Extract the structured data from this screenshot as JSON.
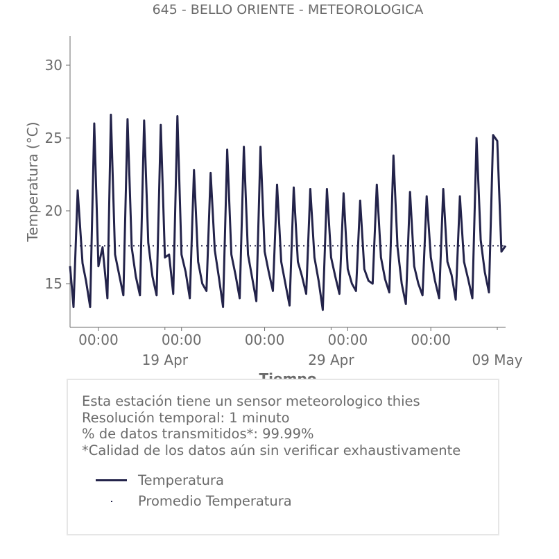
{
  "colors": {
    "series": "#23234a",
    "axis": "#6b6b6b",
    "box_border": "#e6e6e6"
  },
  "info": {
    "lines": [
      "Esta estación tiene un sensor meteorologico thies",
      "Resolución temporal: 1 minuto",
      "% de datos transmitidos*: 99.99%",
      "*Calidad de los datos aún sin verificar exhaustivamente"
    ]
  },
  "chart_data": {
    "type": "line",
    "title": "645 - BELLO ORIENTE - METEOROLOGICA",
    "xlabel": "Tiempo",
    "ylabel": "Temperatura (°C)",
    "ylim": [
      12.0,
      32.0
    ],
    "xlim": [
      "2024-04-13 07:00",
      "2024-05-09 12:00"
    ],
    "y_ticks": [
      15,
      20,
      25,
      30
    ],
    "x_ticks": [
      {
        "x": "2024-04-15 00:00",
        "label": "00:00",
        "sublabel": ""
      },
      {
        "x": "2024-04-20 00:00",
        "label": "00:00",
        "sublabel": ""
      },
      {
        "x": "2024-04-25 00:00",
        "label": "00:00",
        "sublabel": ""
      },
      {
        "x": "2024-04-30 00:00",
        "label": "00:00",
        "sublabel": ""
      },
      {
        "x": "2024-05-05 00:00",
        "label": "00:00",
        "sublabel": ""
      }
    ],
    "x_date_labels": [
      {
        "x": "2024-04-19 00:00",
        "label": "19 Apr"
      },
      {
        "x": "2024-04-29 00:00",
        "label": "29 Apr"
      },
      {
        "x": "2024-05-09 00:00",
        "label": "09 May"
      }
    ],
    "grid": false,
    "legend_placement": "below chart",
    "series": [
      {
        "name": "Temperatura",
        "style": "solid",
        "x": [
          "2024-04-13 07:00",
          "2024-04-13 12:00",
          "2024-04-13 18:00",
          "2024-04-14 01:00",
          "2024-04-14 06:00",
          "2024-04-14 12:00",
          "2024-04-14 18:00",
          "2024-04-15 00:00",
          "2024-04-15 06:00",
          "2024-04-15 13:00",
          "2024-04-15 18:00",
          "2024-04-16 00:00",
          "2024-04-16 06:00",
          "2024-04-16 12:00",
          "2024-04-16 18:00",
          "2024-04-17 00:00",
          "2024-04-17 06:00",
          "2024-04-17 12:00",
          "2024-04-17 18:00",
          "2024-04-18 00:00",
          "2024-04-18 06:00",
          "2024-04-18 12:00",
          "2024-04-18 18:00",
          "2024-04-19 00:00",
          "2024-04-19 06:00",
          "2024-04-19 12:00",
          "2024-04-19 18:00",
          "2024-04-20 00:00",
          "2024-04-20 06:00",
          "2024-04-20 12:00",
          "2024-04-20 18:00",
          "2024-04-21 00:00",
          "2024-04-21 06:00",
          "2024-04-21 12:00",
          "2024-04-21 18:00",
          "2024-04-22 00:00",
          "2024-04-22 06:00",
          "2024-04-22 12:00",
          "2024-04-22 18:00",
          "2024-04-23 00:00",
          "2024-04-23 06:00",
          "2024-04-23 12:00",
          "2024-04-23 18:00",
          "2024-04-24 00:00",
          "2024-04-24 06:00",
          "2024-04-24 12:00",
          "2024-04-24 18:00",
          "2024-04-25 00:00",
          "2024-04-25 06:00",
          "2024-04-25 12:00",
          "2024-04-25 18:00",
          "2024-04-26 00:00",
          "2024-04-26 06:00",
          "2024-04-26 12:00",
          "2024-04-26 18:00",
          "2024-04-27 00:00",
          "2024-04-27 06:00",
          "2024-04-27 12:00",
          "2024-04-27 18:00",
          "2024-04-28 00:00",
          "2024-04-28 06:00",
          "2024-04-28 12:00",
          "2024-04-28 18:00",
          "2024-04-29 00:00",
          "2024-04-29 06:00",
          "2024-04-29 12:00",
          "2024-04-29 18:00",
          "2024-04-30 00:00",
          "2024-04-30 06:00",
          "2024-04-30 12:00",
          "2024-04-30 18:00",
          "2024-05-01 00:00",
          "2024-05-01 06:00",
          "2024-05-01 12:00",
          "2024-05-01 18:00",
          "2024-05-02 00:00",
          "2024-05-02 06:00",
          "2024-05-02 12:00",
          "2024-05-02 18:00",
          "2024-05-03 00:00",
          "2024-05-03 06:00",
          "2024-05-03 12:00",
          "2024-05-03 18:00",
          "2024-05-04 00:00",
          "2024-05-04 06:00",
          "2024-05-04 12:00",
          "2024-05-04 18:00",
          "2024-05-05 00:00",
          "2024-05-05 06:00",
          "2024-05-05 12:00",
          "2024-05-05 18:00",
          "2024-05-06 00:00",
          "2024-05-06 06:00",
          "2024-05-06 12:00",
          "2024-05-06 18:00",
          "2024-05-07 00:00",
          "2024-05-07 06:00",
          "2024-05-07 12:00",
          "2024-05-07 18:00",
          "2024-05-08 00:00",
          "2024-05-08 06:00",
          "2024-05-08 12:00",
          "2024-05-08 18:00",
          "2024-05-09 00:00",
          "2024-05-09 06:00",
          "2024-05-09 12:00"
        ],
        "y": [
          16.2,
          13.4,
          21.4,
          16.4,
          15.2,
          13.4,
          26.0,
          16.2,
          17.5,
          14.0,
          26.6,
          17.0,
          15.6,
          14.2,
          26.3,
          17.5,
          15.5,
          14.2,
          26.2,
          17.8,
          15.5,
          14.2,
          25.9,
          16.8,
          17.0,
          14.3,
          26.5,
          17.0,
          15.8,
          14.0,
          22.8,
          16.5,
          15.0,
          14.5,
          22.6,
          17.3,
          15.4,
          13.4,
          24.2,
          17.0,
          15.6,
          14.0,
          24.4,
          17.0,
          15.4,
          13.8,
          24.4,
          17.2,
          15.8,
          14.5,
          21.8,
          16.5,
          15.0,
          13.5,
          21.6,
          16.5,
          15.5,
          14.3,
          21.5,
          16.8,
          15.2,
          13.2,
          21.5,
          16.8,
          15.5,
          14.3,
          21.2,
          16.0,
          15.0,
          14.5,
          20.7,
          16.0,
          15.2,
          15.0,
          21.8,
          16.8,
          15.3,
          14.4,
          23.8,
          17.5,
          15.0,
          13.6,
          21.3,
          16.2,
          15.0,
          14.2,
          21.0,
          16.8,
          15.2,
          14.0,
          21.5,
          16.5,
          15.6,
          13.9,
          21.0,
          16.5,
          15.3,
          14.0,
          25.0,
          18.0,
          15.8,
          14.4,
          25.2,
          24.8,
          17.2,
          17.6
        ]
      },
      {
        "name": "Promedio Temperatura",
        "style": "dotted",
        "x": [
          "2024-04-13 07:00",
          "2024-05-09 12:00"
        ],
        "y": [
          17.6,
          17.6
        ]
      }
    ]
  }
}
